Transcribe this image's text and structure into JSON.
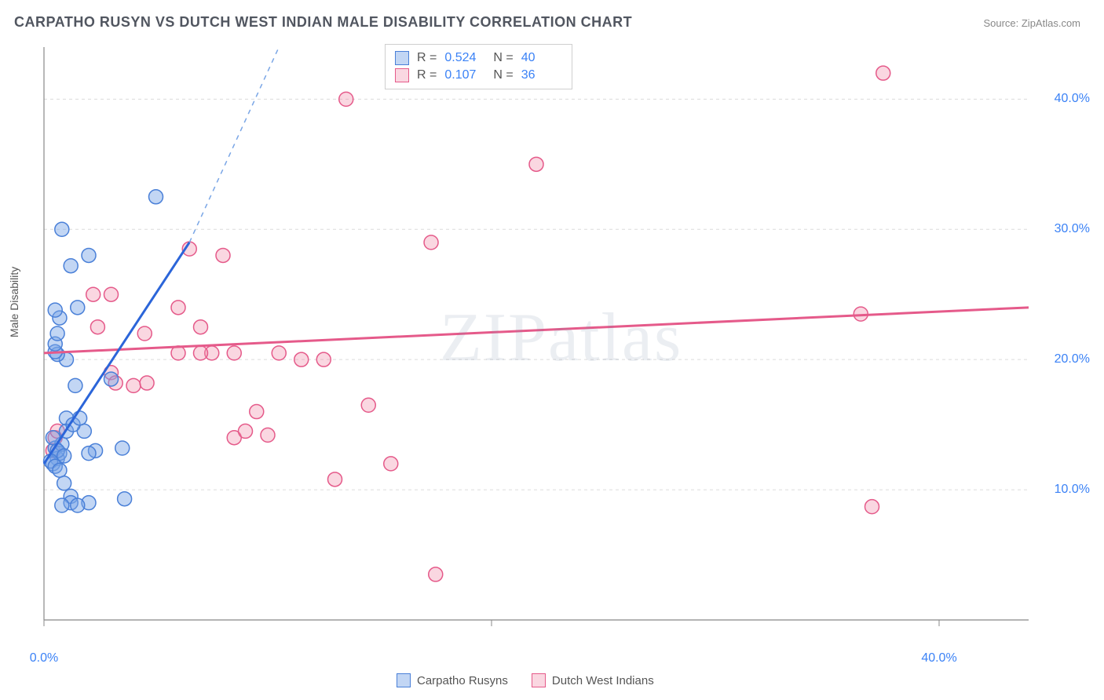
{
  "title": "CARPATHO RUSYN VS DUTCH WEST INDIAN MALE DISABILITY CORRELATION CHART",
  "source": "Source: ZipAtlas.com",
  "ylabel": "Male Disability",
  "watermark": "ZIPatlas",
  "chart": {
    "type": "scatter",
    "xlim": [
      0,
      44
    ],
    "ylim": [
      0,
      44
    ],
    "xticks": [
      {
        "v": 0,
        "label": "0.0%"
      },
      {
        "v": 40,
        "label": "40.0%"
      }
    ],
    "yticks": [
      {
        "v": 10,
        "label": "10.0%"
      },
      {
        "v": 20,
        "label": "20.0%"
      },
      {
        "v": 30,
        "label": "30.0%"
      },
      {
        "v": 40,
        "label": "40.0%"
      }
    ],
    "ygrid": [
      10,
      20,
      30,
      40
    ],
    "xtick_marks": [
      0,
      20,
      40
    ],
    "axis_color": "#888888",
    "grid_color": "#dcdcdc",
    "background_color": "#ffffff",
    "tick_label_color": "#3b82f6",
    "marker_radius": 9,
    "marker_stroke_width": 1.5,
    "series": [
      {
        "name": "Carpatho Rusyns",
        "fill": "rgba(120,165,230,0.45)",
        "stroke": "#4a80d8",
        "points": [
          [
            0.5,
            13.2
          ],
          [
            0.6,
            12.4
          ],
          [
            0.7,
            12.8
          ],
          [
            0.4,
            12.0
          ],
          [
            0.8,
            13.5
          ],
          [
            0.6,
            13.0
          ],
          [
            0.9,
            12.6
          ],
          [
            0.3,
            12.2
          ],
          [
            0.5,
            11.8
          ],
          [
            0.7,
            11.5
          ],
          [
            0.9,
            10.5
          ],
          [
            1.2,
            9.5
          ],
          [
            1.8,
            14.5
          ],
          [
            2.3,
            13.0
          ],
          [
            3.5,
            13.2
          ],
          [
            2.0,
            12.8
          ],
          [
            1.0,
            15.5
          ],
          [
            1.4,
            18.0
          ],
          [
            3.0,
            18.5
          ],
          [
            1.0,
            20.0
          ],
          [
            0.6,
            20.4
          ],
          [
            0.5,
            20.6
          ],
          [
            0.5,
            21.2
          ],
          [
            0.6,
            22.0
          ],
          [
            0.7,
            23.2
          ],
          [
            0.5,
            23.8
          ],
          [
            1.5,
            24.0
          ],
          [
            1.2,
            27.2
          ],
          [
            2.0,
            28.0
          ],
          [
            0.8,
            30.0
          ],
          [
            5.0,
            32.5
          ],
          [
            1.2,
            9.0
          ],
          [
            2.0,
            9.0
          ],
          [
            3.6,
            9.3
          ],
          [
            0.8,
            8.8
          ],
          [
            1.5,
            8.8
          ],
          [
            0.4,
            14.0
          ],
          [
            1.0,
            14.5
          ],
          [
            1.3,
            15.0
          ],
          [
            1.6,
            15.5
          ]
        ],
        "trend": {
          "x1": 0,
          "y1": 12.0,
          "x2": 6.5,
          "y2": 29.0,
          "dash_extend_to": [
            10.5,
            44
          ],
          "color": "#2b65d9",
          "width": 3,
          "dash_color": "#7aa6e6"
        },
        "R": "0.524",
        "N": "40"
      },
      {
        "name": "Dutch West Indians",
        "fill": "rgba(240,140,170,0.35)",
        "stroke": "#e55a8a",
        "points": [
          [
            0.5,
            14.0
          ],
          [
            0.4,
            13.0
          ],
          [
            0.6,
            14.5
          ],
          [
            2.2,
            25.0
          ],
          [
            2.4,
            22.5
          ],
          [
            3.0,
            25.0
          ],
          [
            3.0,
            19.0
          ],
          [
            3.2,
            18.2
          ],
          [
            4.0,
            18.0
          ],
          [
            4.5,
            22.0
          ],
          [
            4.6,
            18.2
          ],
          [
            6.0,
            24.0
          ],
          [
            7.0,
            22.5
          ],
          [
            7.5,
            20.5
          ],
          [
            6.5,
            28.5
          ],
          [
            8.5,
            20.5
          ],
          [
            8.5,
            14.0
          ],
          [
            9.0,
            14.5
          ],
          [
            9.5,
            16.0
          ],
          [
            10.5,
            20.5
          ],
          [
            12.5,
            20.0
          ],
          [
            11.5,
            20.0
          ],
          [
            13.0,
            10.8
          ],
          [
            13.5,
            40.0
          ],
          [
            15.5,
            12.0
          ],
          [
            14.5,
            16.5
          ],
          [
            17.5,
            3.5
          ],
          [
            17.3,
            29.0
          ],
          [
            22.0,
            35.0
          ],
          [
            37.5,
            42.0
          ],
          [
            37.0,
            8.7
          ],
          [
            36.5,
            23.5
          ],
          [
            7.0,
            20.5
          ],
          [
            10.0,
            14.2
          ],
          [
            6.0,
            20.5
          ],
          [
            8.0,
            28.0
          ]
        ],
        "trend": {
          "x1": 0,
          "y1": 20.5,
          "x2": 44,
          "y2": 24.0,
          "color": "#e55a8a",
          "width": 3
        },
        "R": "0.107",
        "N": "36"
      }
    ]
  },
  "statbox": {
    "label_R": "R =",
    "label_N": "N ="
  },
  "legend_labels": [
    "Carpatho Rusyns",
    "Dutch West Indians"
  ]
}
